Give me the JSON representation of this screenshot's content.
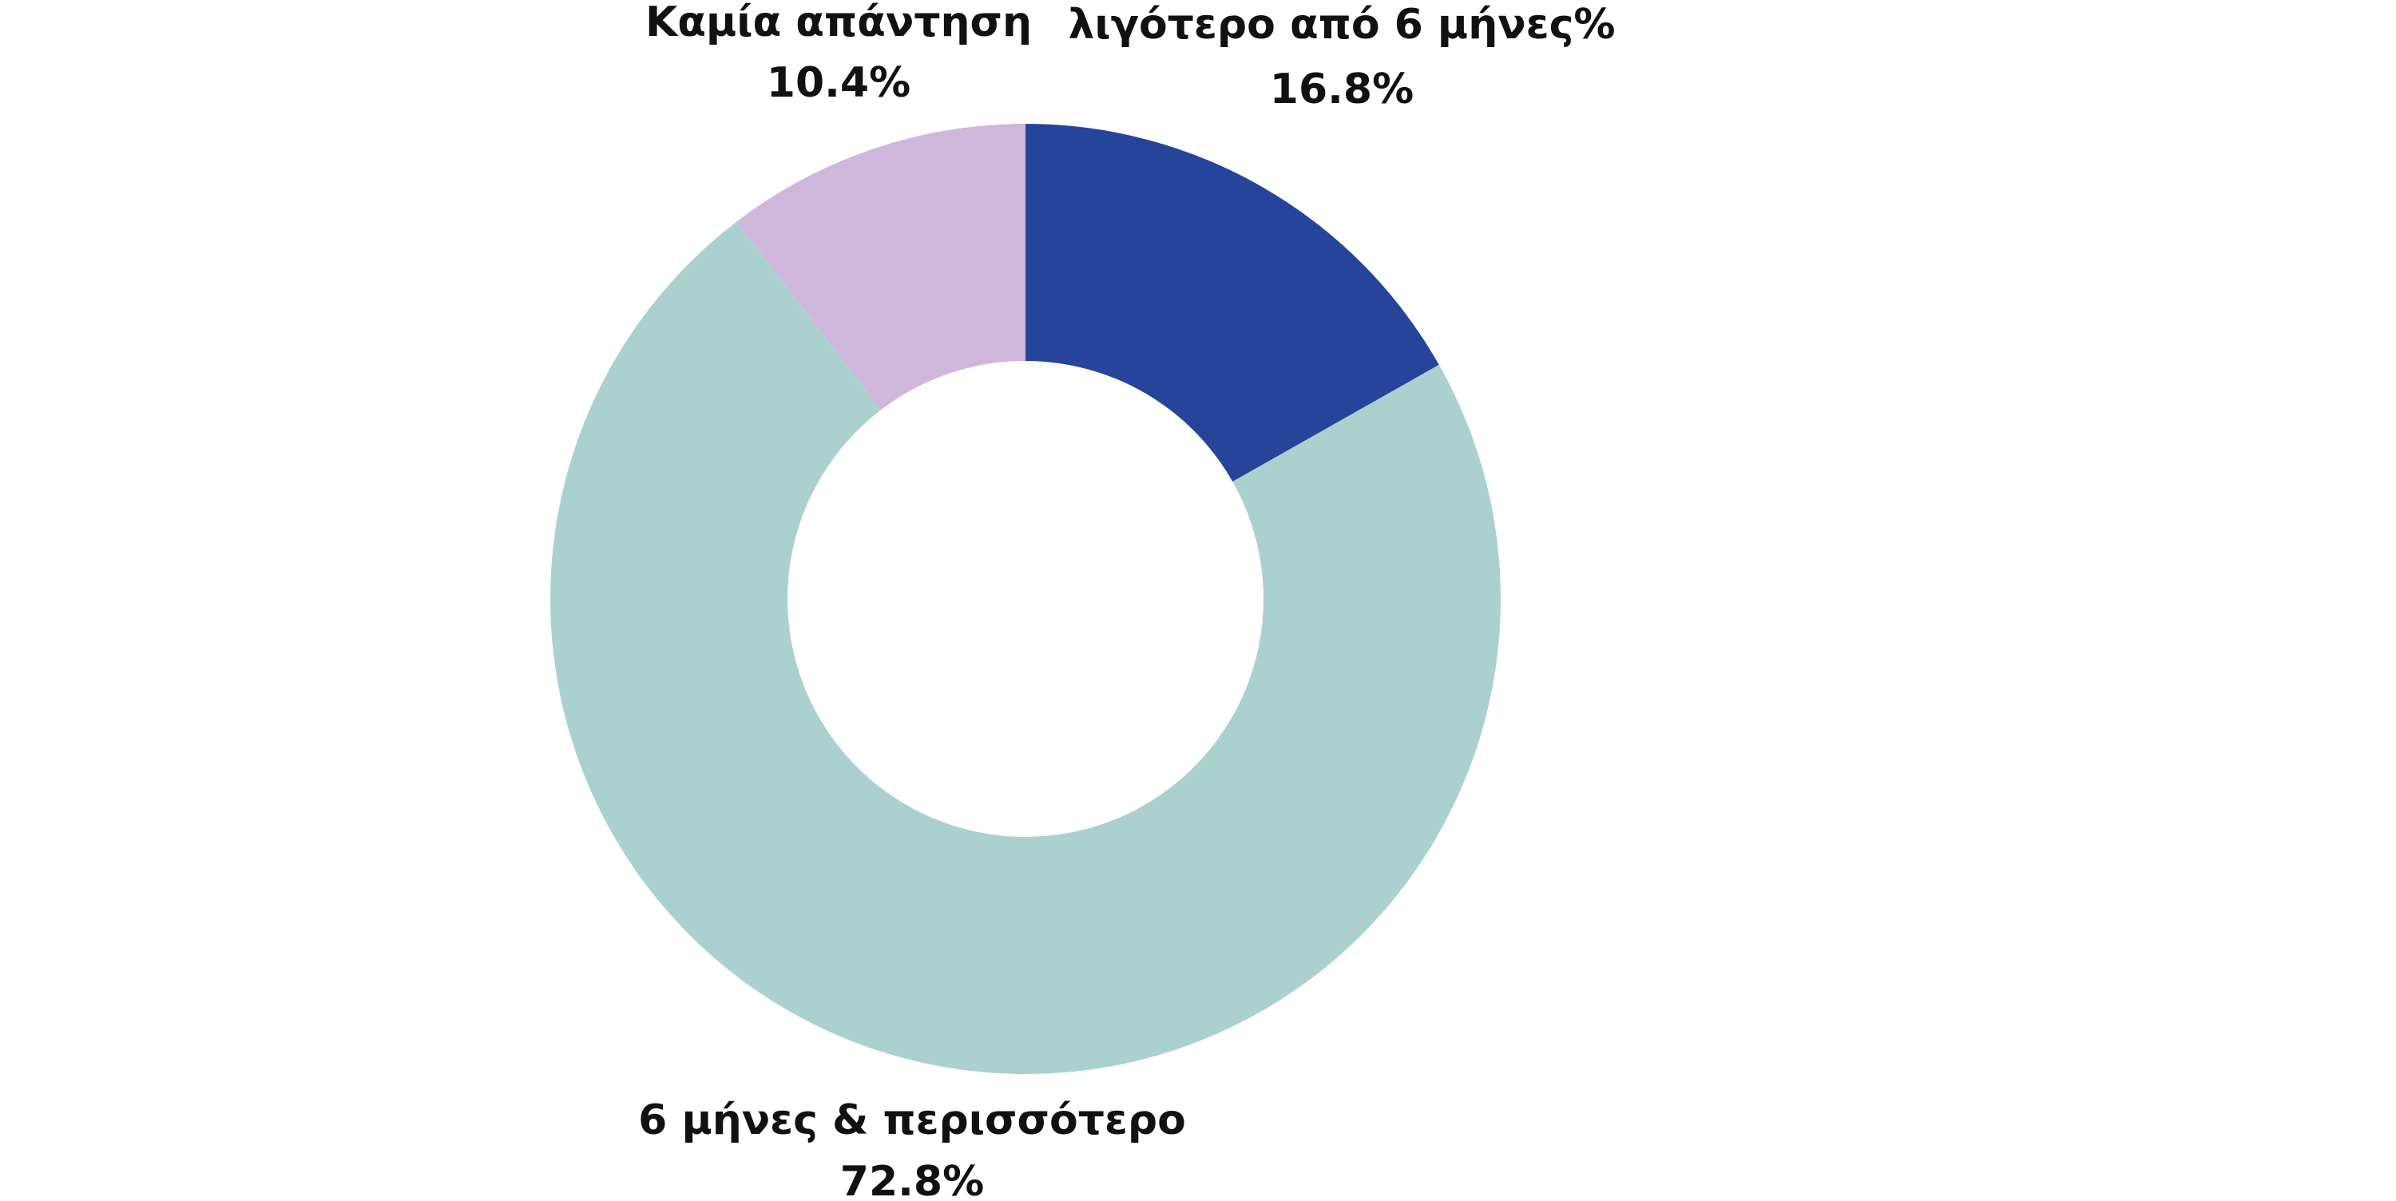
{
  "chart_data": {
    "type": "donut",
    "categories": [
      "λιγότερο από 6 μήνες%",
      "6 μήνες & περισσότερο",
      "Καμία απάντηση"
    ],
    "values": [
      16.8,
      72.8,
      10.4
    ],
    "value_labels": [
      "16.8%",
      "72.8%",
      "10.4%"
    ],
    "colors": [
      "#26449a",
      "#abd1cf",
      "#cfb7db"
    ]
  }
}
